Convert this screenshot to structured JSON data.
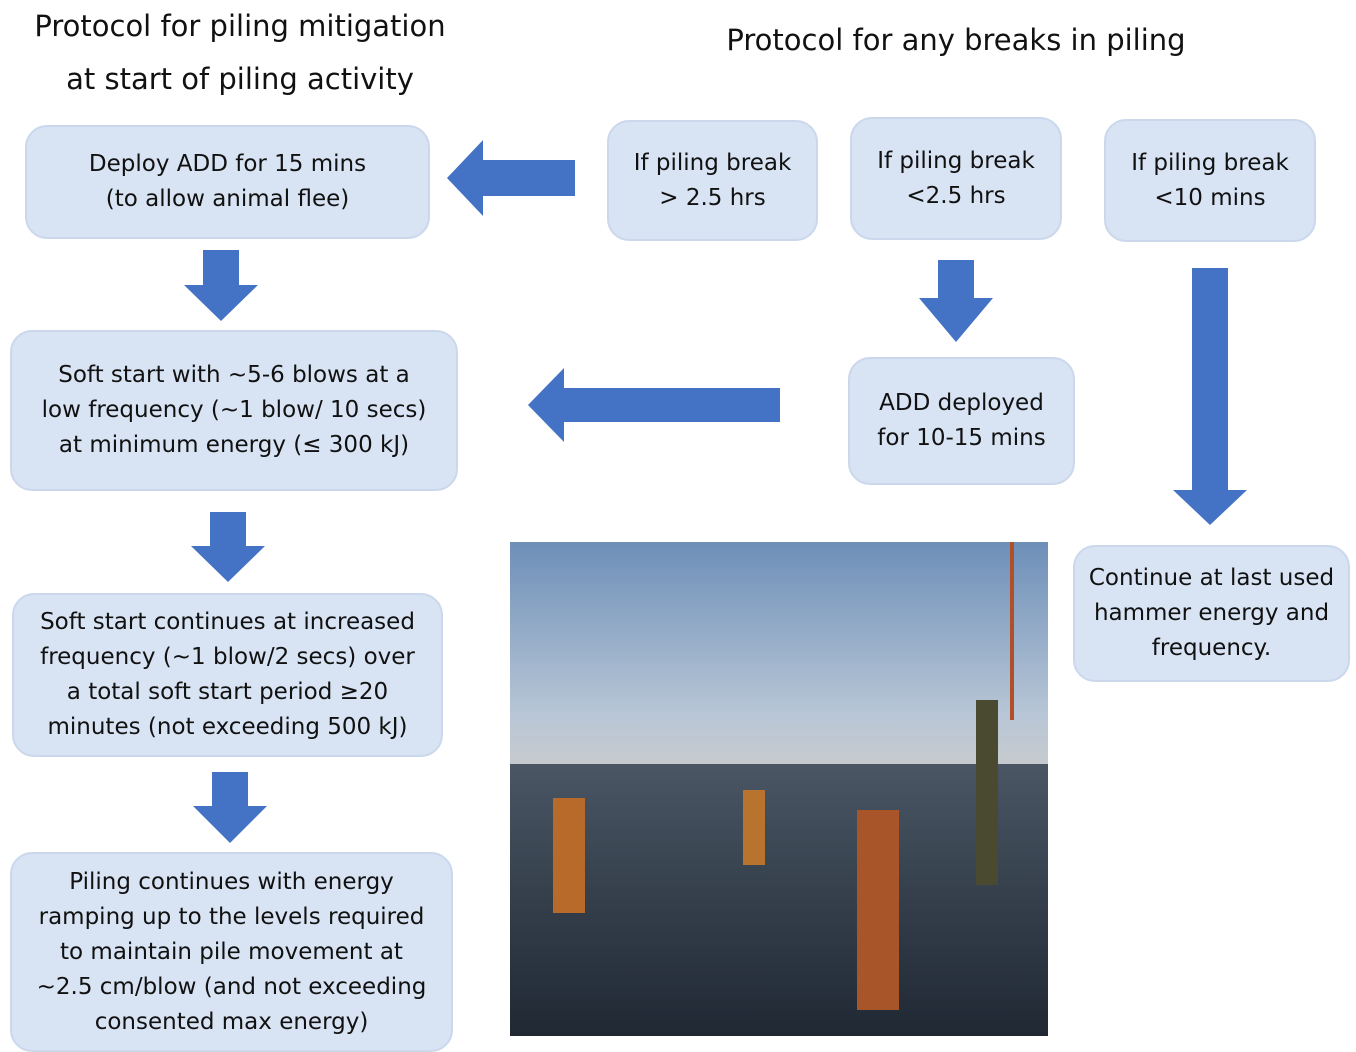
{
  "titles": {
    "left": [
      "Protocol for piling mitigation",
      "at start of piling activity"
    ],
    "right": "Protocol for any breaks in piling"
  },
  "nodes": [
    {
      "lines": [
        "Deploy ADD for 15 mins",
        "(to allow animal flee)"
      ]
    },
    {
      "lines": [
        "Soft start with ~5-6 blows at a",
        "low frequency (~1 blow/ 10 secs)",
        "at minimum energy (≤ 300 kJ)"
      ]
    },
    {
      "lines": [
        "Soft start continues at increased",
        "frequency (~1 blow/2 secs) over",
        "a total soft start period ≥20",
        "minutes (not exceeding 500 kJ)"
      ]
    },
    {
      "lines": [
        "Piling continues with energy",
        "ramping up to the levels required",
        "to maintain pile movement at",
        "~2.5 cm/blow (and not exceeding",
        "consented max energy)"
      ]
    },
    {
      "lines": [
        "If piling break",
        "> 2.5 hrs"
      ]
    },
    {
      "lines": [
        "If piling break",
        "<2.5 hrs"
      ]
    },
    {
      "lines": [
        "If piling break",
        "<10 mins"
      ]
    },
    {
      "lines": [
        "ADD deployed",
        "for 10-15 mins"
      ]
    },
    {
      "lines": [
        "Continue at last used",
        "hammer energy and",
        "frequency."
      ]
    }
  ]
}
